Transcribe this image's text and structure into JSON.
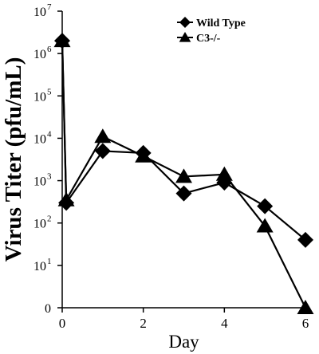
{
  "chart_data": {
    "type": "line",
    "xlabel": "Day",
    "ylabel": "Virus Titer (pfu/mL)",
    "xlim": [
      0,
      6
    ],
    "ylim_log10": [
      0,
      7
    ],
    "x_ticks": [
      {
        "value": 0,
        "label": "0"
      },
      {
        "value": 2,
        "label": "2"
      },
      {
        "value": 4,
        "label": "4"
      },
      {
        "value": 6,
        "label": "6"
      }
    ],
    "y_ticks": [
      {
        "exp": 0,
        "base": "0",
        "sup": ""
      },
      {
        "exp": 1,
        "base": "10",
        "sup": "1"
      },
      {
        "exp": 2,
        "base": "10",
        "sup": "2"
      },
      {
        "exp": 3,
        "base": "10",
        "sup": "3"
      },
      {
        "exp": 4,
        "base": "10",
        "sup": "4"
      },
      {
        "exp": 5,
        "base": "10",
        "sup": "5"
      },
      {
        "exp": 6,
        "base": "10",
        "sup": "6"
      },
      {
        "exp": 7,
        "base": "10",
        "sup": "7"
      }
    ],
    "legend_placement": "top-right",
    "series": [
      {
        "name": "Wild Type",
        "marker": "diamond",
        "x": [
          0,
          0.1,
          1,
          2,
          3,
          4,
          5,
          6
        ],
        "y": [
          2000000,
          300,
          5000,
          4500,
          500,
          900,
          250,
          40
        ]
      },
      {
        "name": "C3-/-",
        "marker": "triangle",
        "x": [
          0,
          0.1,
          1,
          2,
          3,
          4,
          5,
          6
        ],
        "y": [
          2000000,
          350,
          11000,
          3800,
          1250,
          1400,
          85,
          1
        ]
      }
    ]
  }
}
